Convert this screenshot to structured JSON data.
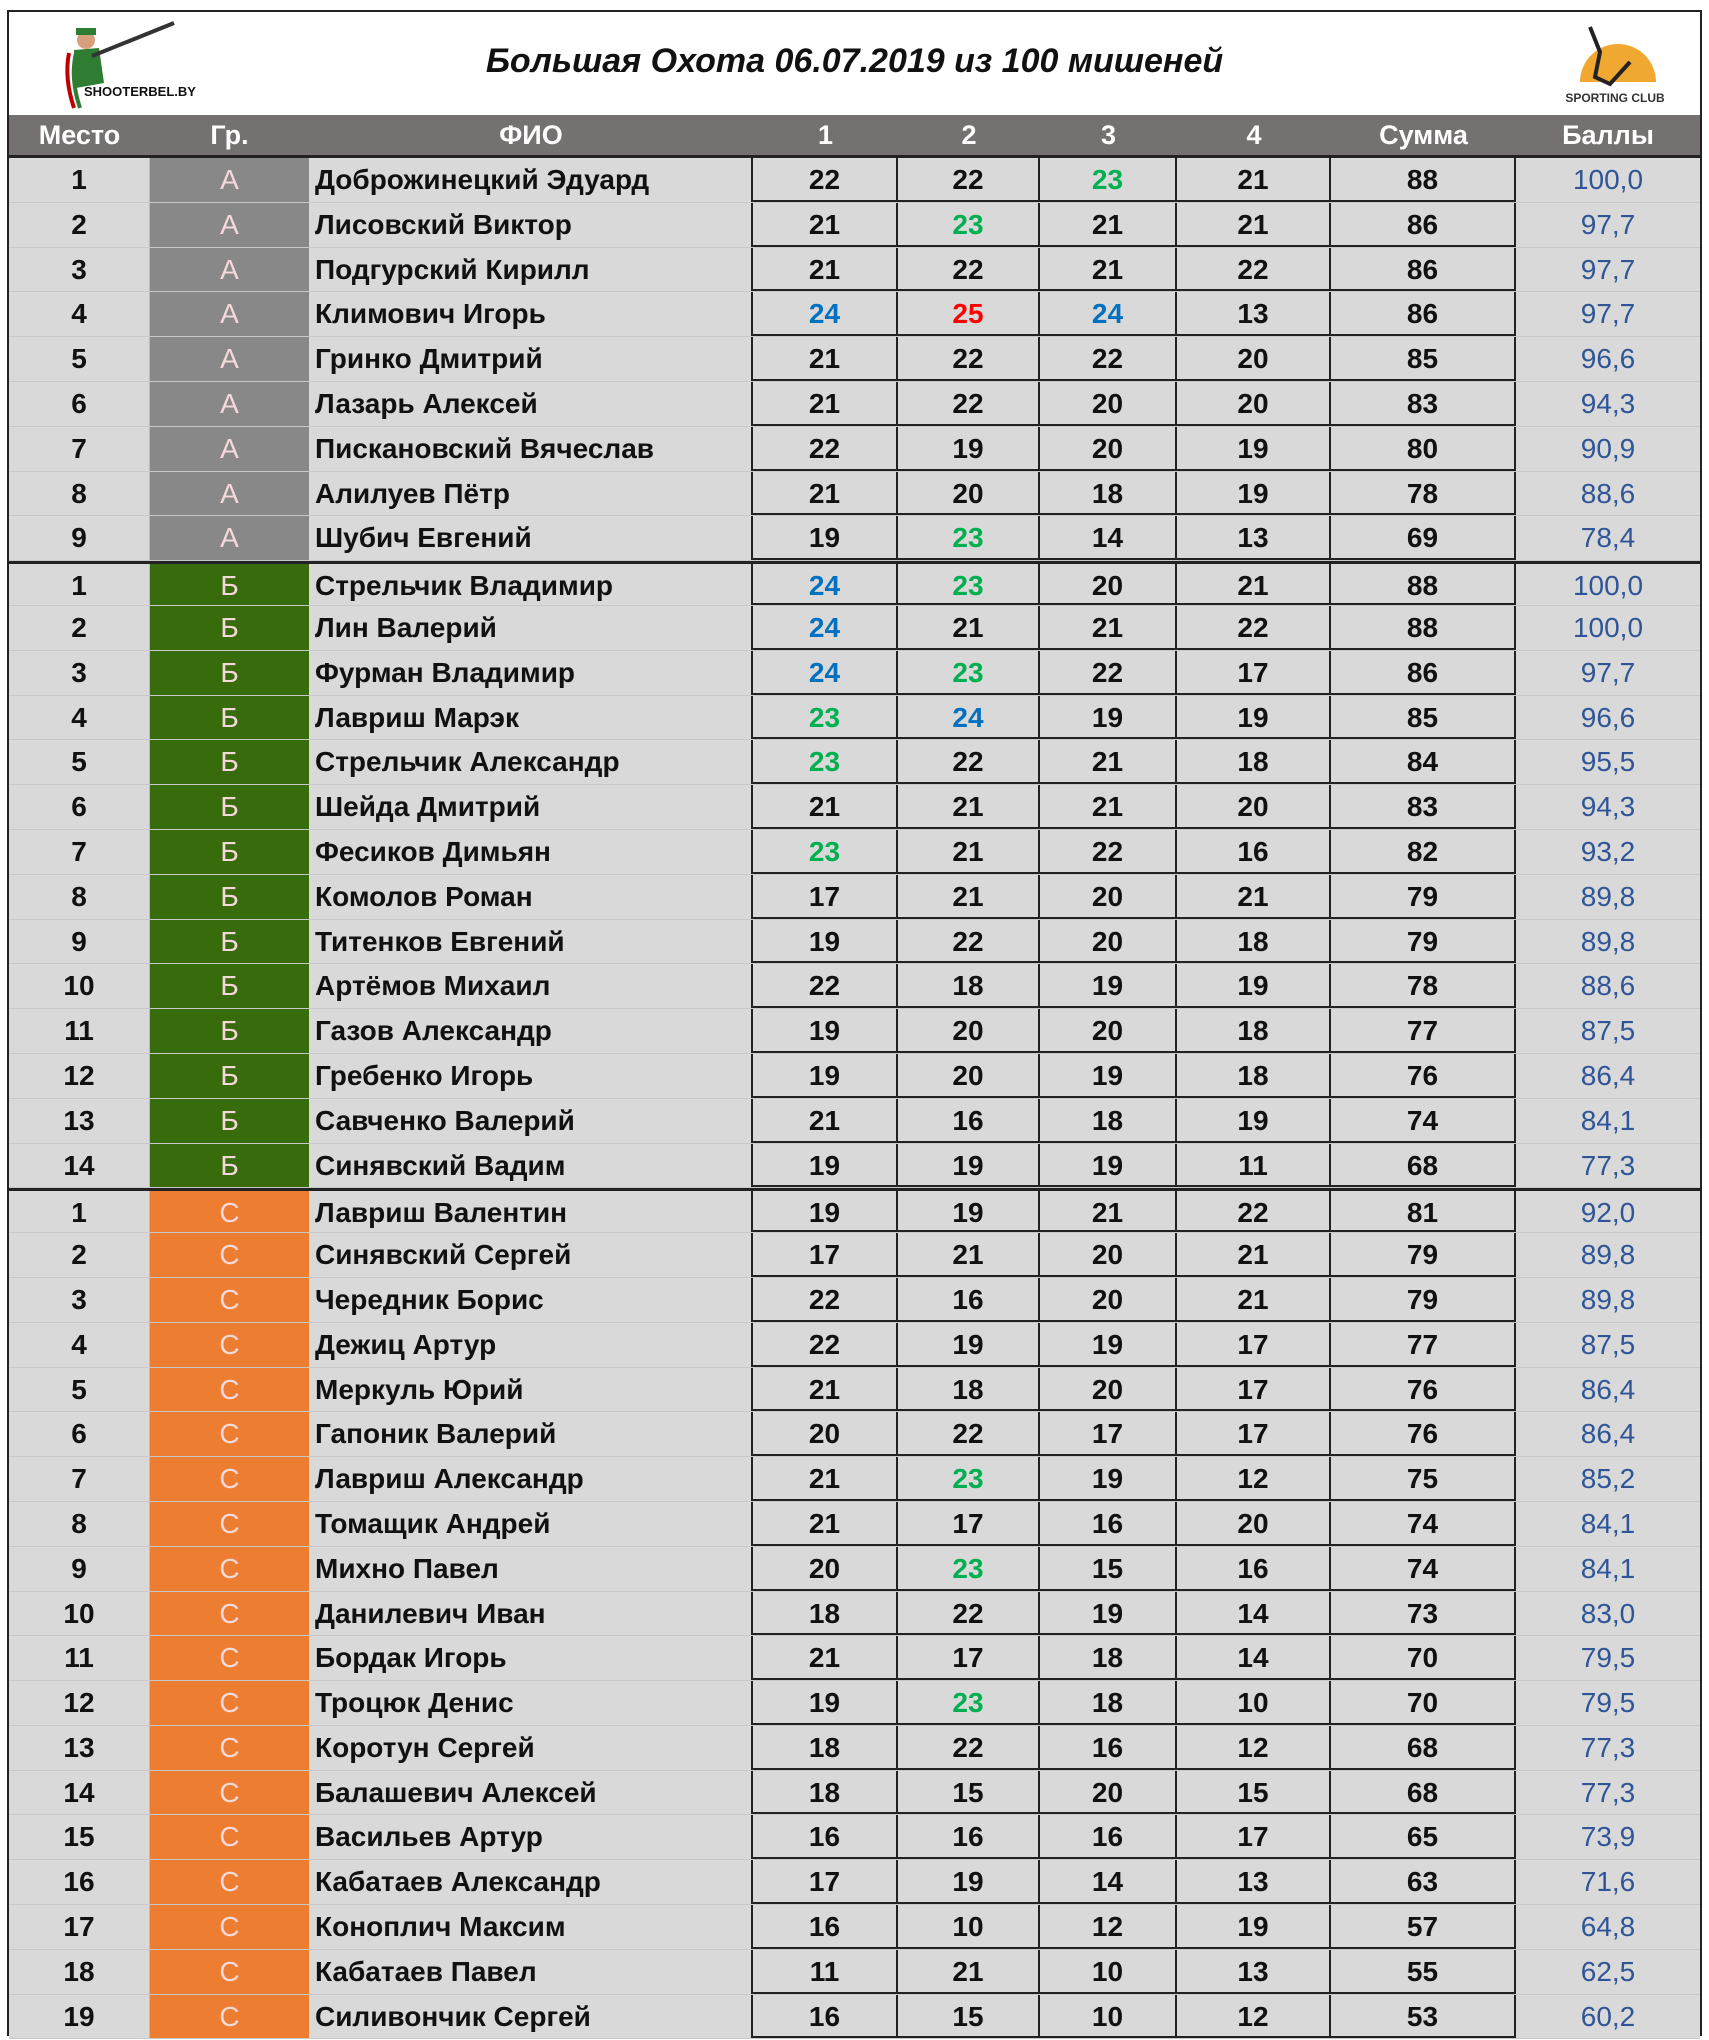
{
  "title": "Большая Охота 06.07.2019 из 100 мишеней",
  "logos": {
    "left": "SHOOTERBEL.BY",
    "right": "SPORTING CLUB"
  },
  "columns": [
    "Место",
    "Гр.",
    "ФИО",
    "1",
    "2",
    "3",
    "4",
    "Сумма",
    "Баллы"
  ],
  "colors": {
    "group_A": "#c00000",
    "group_Б": "#386b0b",
    "group_С": "#ed7d31",
    "green": "#00b050",
    "blue": "#0070c0",
    "red": "#ff0000",
    "points": "#2f5597"
  },
  "rows": [
    {
      "place": "1",
      "group": "А",
      "name": "Доброжинецкий Эдуард",
      "scores": [
        "22",
        "22",
        "23",
        "21"
      ],
      "hl": [
        null,
        null,
        "green",
        null
      ],
      "sum": "88",
      "points": "100,0"
    },
    {
      "place": "2",
      "group": "А",
      "name": "Лисовский Виктор",
      "scores": [
        "21",
        "23",
        "21",
        "21"
      ],
      "hl": [
        null,
        "green",
        null,
        null
      ],
      "sum": "86",
      "points": "97,7"
    },
    {
      "place": "3",
      "group": "А",
      "name": "Подгурский Кирилл",
      "scores": [
        "21",
        "22",
        "21",
        "22"
      ],
      "hl": [
        null,
        null,
        null,
        null
      ],
      "sum": "86",
      "points": "97,7"
    },
    {
      "place": "4",
      "group": "А",
      "name": "Климович Игорь",
      "scores": [
        "24",
        "25",
        "24",
        "13"
      ],
      "hl": [
        "blue",
        "red",
        "blue",
        null
      ],
      "sum": "86",
      "points": "97,7"
    },
    {
      "place": "5",
      "group": "А",
      "name": "Гринко Дмитрий",
      "scores": [
        "21",
        "22",
        "22",
        "20"
      ],
      "hl": [
        null,
        null,
        null,
        null
      ],
      "sum": "85",
      "points": "96,6"
    },
    {
      "place": "6",
      "group": "А",
      "name": "Лазарь Алексей",
      "scores": [
        "21",
        "22",
        "20",
        "20"
      ],
      "hl": [
        null,
        null,
        null,
        null
      ],
      "sum": "83",
      "points": "94,3"
    },
    {
      "place": "7",
      "group": "А",
      "name": "Пискановский Вячеслав",
      "scores": [
        "22",
        "19",
        "20",
        "19"
      ],
      "hl": [
        null,
        null,
        null,
        null
      ],
      "sum": "80",
      "points": "90,9"
    },
    {
      "place": "8",
      "group": "А",
      "name": "Алилуев Пётр",
      "scores": [
        "21",
        "20",
        "18",
        "19"
      ],
      "hl": [
        null,
        null,
        null,
        null
      ],
      "sum": "78",
      "points": "88,6"
    },
    {
      "place": "9",
      "group": "А",
      "name": "Шубич Евгений",
      "scores": [
        "19",
        "23",
        "14",
        "13"
      ],
      "hl": [
        null,
        "green",
        null,
        null
      ],
      "sum": "69",
      "points": "78,4"
    },
    {
      "place": "1",
      "group": "Б",
      "name": "Стрельчик Владимир",
      "scores": [
        "24",
        "23",
        "20",
        "21"
      ],
      "hl": [
        "blue",
        "green",
        null,
        null
      ],
      "sum": "88",
      "points": "100,0"
    },
    {
      "place": "2",
      "group": "Б",
      "name": "Лин Валерий",
      "scores": [
        "24",
        "21",
        "21",
        "22"
      ],
      "hl": [
        "blue",
        null,
        null,
        null
      ],
      "sum": "88",
      "points": "100,0"
    },
    {
      "place": "3",
      "group": "Б",
      "name": "Фурман Владимир",
      "scores": [
        "24",
        "23",
        "22",
        "17"
      ],
      "hl": [
        "blue",
        "green",
        null,
        null
      ],
      "sum": "86",
      "points": "97,7"
    },
    {
      "place": "4",
      "group": "Б",
      "name": "Лавриш Марэк",
      "scores": [
        "23",
        "24",
        "19",
        "19"
      ],
      "hl": [
        "green",
        "blue",
        null,
        null
      ],
      "sum": "85",
      "points": "96,6"
    },
    {
      "place": "5",
      "group": "Б",
      "name": "Стрельчик Александр",
      "scores": [
        "23",
        "22",
        "21",
        "18"
      ],
      "hl": [
        "green",
        null,
        null,
        null
      ],
      "sum": "84",
      "points": "95,5"
    },
    {
      "place": "6",
      "group": "Б",
      "name": "Шейда Дмитрий",
      "scores": [
        "21",
        "21",
        "21",
        "20"
      ],
      "hl": [
        null,
        null,
        null,
        null
      ],
      "sum": "83",
      "points": "94,3"
    },
    {
      "place": "7",
      "group": "Б",
      "name": "Фесиков Димьян",
      "scores": [
        "23",
        "21",
        "22",
        "16"
      ],
      "hl": [
        "green",
        null,
        null,
        null
      ],
      "sum": "82",
      "points": "93,2"
    },
    {
      "place": "8",
      "group": "Б",
      "name": "Комолов Роман",
      "scores": [
        "17",
        "21",
        "20",
        "21"
      ],
      "hl": [
        null,
        null,
        null,
        null
      ],
      "sum": "79",
      "points": "89,8"
    },
    {
      "place": "9",
      "group": "Б",
      "name": "Титенков Евгений",
      "scores": [
        "19",
        "22",
        "20",
        "18"
      ],
      "hl": [
        null,
        null,
        null,
        null
      ],
      "sum": "79",
      "points": "89,8"
    },
    {
      "place": "10",
      "group": "Б",
      "name": "Артёмов Михаил",
      "scores": [
        "22",
        "18",
        "19",
        "19"
      ],
      "hl": [
        null,
        null,
        null,
        null
      ],
      "sum": "78",
      "points": "88,6"
    },
    {
      "place": "11",
      "group": "Б",
      "name": "Газов Александр",
      "scores": [
        "19",
        "20",
        "20",
        "18"
      ],
      "hl": [
        null,
        null,
        null,
        null
      ],
      "sum": "77",
      "points": "87,5"
    },
    {
      "place": "12",
      "group": "Б",
      "name": "Гребенко Игорь",
      "scores": [
        "19",
        "20",
        "19",
        "18"
      ],
      "hl": [
        null,
        null,
        null,
        null
      ],
      "sum": "76",
      "points": "86,4"
    },
    {
      "place": "13",
      "group": "Б",
      "name": "Савченко Валерий",
      "scores": [
        "21",
        "16",
        "18",
        "19"
      ],
      "hl": [
        null,
        null,
        null,
        null
      ],
      "sum": "74",
      "points": "84,1"
    },
    {
      "place": "14",
      "group": "Б",
      "name": "Синявский Вадим",
      "scores": [
        "19",
        "19",
        "19",
        "11"
      ],
      "hl": [
        null,
        null,
        null,
        null
      ],
      "sum": "68",
      "points": "77,3"
    },
    {
      "place": "1",
      "group": "С",
      "name": "Лавриш Валентин",
      "scores": [
        "19",
        "19",
        "21",
        "22"
      ],
      "hl": [
        null,
        null,
        null,
        null
      ],
      "sum": "81",
      "points": "92,0"
    },
    {
      "place": "2",
      "group": "С",
      "name": "Синявский Сергей",
      "scores": [
        "17",
        "21",
        "20",
        "21"
      ],
      "hl": [
        null,
        null,
        null,
        null
      ],
      "sum": "79",
      "points": "89,8"
    },
    {
      "place": "3",
      "group": "С",
      "name": "Чередник Борис",
      "scores": [
        "22",
        "16",
        "20",
        "21"
      ],
      "hl": [
        null,
        null,
        null,
        null
      ],
      "sum": "79",
      "points": "89,8"
    },
    {
      "place": "4",
      "group": "С",
      "name": "Дежиц Артур",
      "scores": [
        "22",
        "19",
        "19",
        "17"
      ],
      "hl": [
        null,
        null,
        null,
        null
      ],
      "sum": "77",
      "points": "87,5"
    },
    {
      "place": "5",
      "group": "С",
      "name": "Меркуль Юрий",
      "scores": [
        "21",
        "18",
        "20",
        "17"
      ],
      "hl": [
        null,
        null,
        null,
        null
      ],
      "sum": "76",
      "points": "86,4"
    },
    {
      "place": "6",
      "group": "С",
      "name": "Гапоник Валерий",
      "scores": [
        "20",
        "22",
        "17",
        "17"
      ],
      "hl": [
        null,
        null,
        null,
        null
      ],
      "sum": "76",
      "points": "86,4"
    },
    {
      "place": "7",
      "group": "С",
      "name": "Лавриш Александр",
      "scores": [
        "21",
        "23",
        "19",
        "12"
      ],
      "hl": [
        null,
        "green",
        null,
        null
      ],
      "sum": "75",
      "points": "85,2"
    },
    {
      "place": "8",
      "group": "С",
      "name": "Томащик Андрей",
      "scores": [
        "21",
        "17",
        "16",
        "20"
      ],
      "hl": [
        null,
        null,
        null,
        null
      ],
      "sum": "74",
      "points": "84,1"
    },
    {
      "place": "9",
      "group": "С",
      "name": "Михно Павел",
      "scores": [
        "20",
        "23",
        "15",
        "16"
      ],
      "hl": [
        null,
        "green",
        null,
        null
      ],
      "sum": "74",
      "points": "84,1"
    },
    {
      "place": "10",
      "group": "С",
      "name": "Данилевич Иван",
      "scores": [
        "18",
        "22",
        "19",
        "14"
      ],
      "hl": [
        null,
        null,
        null,
        null
      ],
      "sum": "73",
      "points": "83,0"
    },
    {
      "place": "11",
      "group": "С",
      "name": "Бордак Игорь",
      "scores": [
        "21",
        "17",
        "18",
        "14"
      ],
      "hl": [
        null,
        null,
        null,
        null
      ],
      "sum": "70",
      "points": "79,5"
    },
    {
      "place": "12",
      "group": "С",
      "name": "Троцюк Денис",
      "scores": [
        "19",
        "23",
        "18",
        "10"
      ],
      "hl": [
        null,
        "green",
        null,
        null
      ],
      "sum": "70",
      "points": "79,5"
    },
    {
      "place": "13",
      "group": "С",
      "name": "Коротун Сергей",
      "scores": [
        "18",
        "22",
        "16",
        "12"
      ],
      "hl": [
        null,
        null,
        null,
        null
      ],
      "sum": "68",
      "points": "77,3"
    },
    {
      "place": "14",
      "group": "С",
      "name": "Балашевич Алексей",
      "scores": [
        "18",
        "15",
        "20",
        "15"
      ],
      "hl": [
        null,
        null,
        null,
        null
      ],
      "sum": "68",
      "points": "77,3"
    },
    {
      "place": "15",
      "group": "С",
      "name": "Васильев Артур",
      "scores": [
        "16",
        "16",
        "16",
        "17"
      ],
      "hl": [
        null,
        null,
        null,
        null
      ],
      "sum": "65",
      "points": "73,9"
    },
    {
      "place": "16",
      "group": "С",
      "name": "Кабатаев Александр",
      "scores": [
        "17",
        "19",
        "14",
        "13"
      ],
      "hl": [
        null,
        null,
        null,
        null
      ],
      "sum": "63",
      "points": "71,6"
    },
    {
      "place": "17",
      "group": "С",
      "name": "Коноплич Максим",
      "scores": [
        "16",
        "10",
        "12",
        "19"
      ],
      "hl": [
        null,
        null,
        null,
        null
      ],
      "sum": "57",
      "points": "64,8"
    },
    {
      "place": "18",
      "group": "С",
      "name": "Кабатаев Павел",
      "scores": [
        "11",
        "21",
        "10",
        "13"
      ],
      "hl": [
        null,
        null,
        null,
        null
      ],
      "sum": "55",
      "points": "62,5"
    },
    {
      "place": "19",
      "group": "С",
      "name": "Силивончик Сергей",
      "scores": [
        "16",
        "15",
        "10",
        "12"
      ],
      "hl": [
        null,
        null,
        null,
        null
      ],
      "sum": "53",
      "points": "60,2"
    }
  ]
}
